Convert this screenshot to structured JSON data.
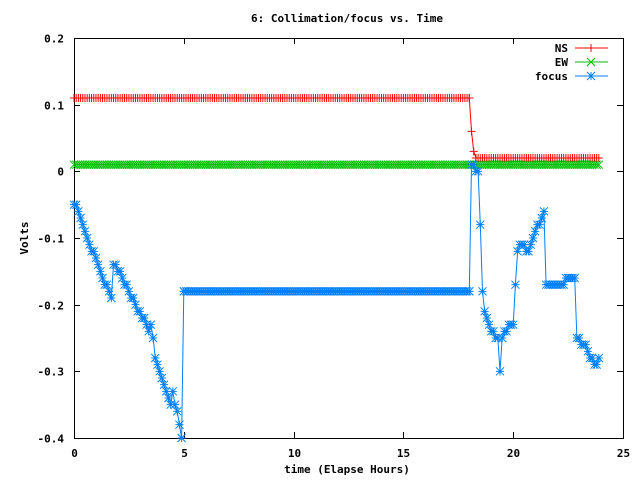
{
  "chart_data": {
    "type": "line",
    "title": "6: Collimation/focus vs. Time",
    "xlabel": "time (Elapse Hours)",
    "ylabel": "Volts",
    "xlim": [
      0,
      25
    ],
    "ylim": [
      -0.4,
      0.2
    ],
    "x_ticks": [
      0,
      5,
      10,
      15,
      20,
      25
    ],
    "x_tick_labels": [
      "0",
      "5",
      "10",
      "15",
      "20",
      "25"
    ],
    "y_ticks": [
      -0.4,
      -0.3,
      -0.2,
      -0.1,
      0,
      0.1,
      0.2
    ],
    "y_tick_labels": [
      "-0.4",
      "-0.3",
      "-0.2",
      "-0.1",
      "0",
      "0.1",
      "0.2"
    ],
    "grid": false,
    "legend_position": "top-right",
    "series": [
      {
        "name": "NS",
        "color": "#ff0000",
        "marker": "plus",
        "segments": [
          {
            "x_start": 0.0,
            "x_end": 18.0,
            "step": 0.1,
            "y": 0.11
          },
          {
            "x_start": 18.3,
            "x_end": 23.9,
            "step": 0.1,
            "y": 0.02
          }
        ],
        "points": [
          [
            18.0,
            0.11
          ],
          [
            18.1,
            0.06
          ],
          [
            18.2,
            0.03
          ],
          [
            18.3,
            0.02
          ]
        ]
      },
      {
        "name": "EW",
        "color": "#00c000",
        "marker": "cross",
        "segments": [
          {
            "x_start": 0.0,
            "x_end": 23.9,
            "step": 0.1,
            "y": 0.01
          }
        ],
        "points": []
      },
      {
        "name": "focus",
        "color": "#0080ff",
        "marker": "star",
        "segments": [
          {
            "x_start": 5.0,
            "x_end": 18.0,
            "step": 0.1,
            "y": -0.18
          }
        ],
        "points": [
          [
            0.0,
            -0.05
          ],
          [
            0.1,
            -0.05
          ],
          [
            0.2,
            -0.06
          ],
          [
            0.3,
            -0.07
          ],
          [
            0.4,
            -0.08
          ],
          [
            0.5,
            -0.09
          ],
          [
            0.6,
            -0.1
          ],
          [
            0.7,
            -0.11
          ],
          [
            0.8,
            -0.12
          ],
          [
            0.9,
            -0.12
          ],
          [
            1.0,
            -0.13
          ],
          [
            1.1,
            -0.14
          ],
          [
            1.2,
            -0.15
          ],
          [
            1.3,
            -0.16
          ],
          [
            1.4,
            -0.17
          ],
          [
            1.5,
            -0.17
          ],
          [
            1.6,
            -0.18
          ],
          [
            1.7,
            -0.19
          ],
          [
            1.8,
            -0.14
          ],
          [
            1.9,
            -0.14
          ],
          [
            2.0,
            -0.15
          ],
          [
            2.1,
            -0.15
          ],
          [
            2.2,
            -0.16
          ],
          [
            2.3,
            -0.17
          ],
          [
            2.4,
            -0.17
          ],
          [
            2.5,
            -0.18
          ],
          [
            2.6,
            -0.19
          ],
          [
            2.7,
            -0.19
          ],
          [
            2.8,
            -0.2
          ],
          [
            2.9,
            -0.21
          ],
          [
            3.0,
            -0.21
          ],
          [
            3.1,
            -0.22
          ],
          [
            3.2,
            -0.22
          ],
          [
            3.3,
            -0.23
          ],
          [
            3.4,
            -0.24
          ],
          [
            3.5,
            -0.23
          ],
          [
            3.6,
            -0.25
          ],
          [
            3.7,
            -0.28
          ],
          [
            3.8,
            -0.29
          ],
          [
            3.9,
            -0.3
          ],
          [
            4.0,
            -0.31
          ],
          [
            4.1,
            -0.32
          ],
          [
            4.2,
            -0.33
          ],
          [
            4.3,
            -0.34
          ],
          [
            4.4,
            -0.35
          ],
          [
            4.5,
            -0.33
          ],
          [
            4.6,
            -0.35
          ],
          [
            4.7,
            -0.36
          ],
          [
            4.8,
            -0.38
          ],
          [
            4.9,
            -0.4
          ],
          [
            5.0,
            -0.18
          ],
          [
            18.0,
            -0.18
          ],
          [
            18.1,
            0.01
          ],
          [
            18.2,
            0.01
          ],
          [
            18.3,
            0.0
          ],
          [
            18.4,
            0.0
          ],
          [
            18.5,
            -0.08
          ],
          [
            18.6,
            -0.18
          ],
          [
            18.7,
            -0.21
          ],
          [
            18.8,
            -0.22
          ],
          [
            18.9,
            -0.23
          ],
          [
            19.0,
            -0.24
          ],
          [
            19.1,
            -0.24
          ],
          [
            19.2,
            -0.25
          ],
          [
            19.3,
            -0.25
          ],
          [
            19.4,
            -0.3
          ],
          [
            19.5,
            -0.25
          ],
          [
            19.6,
            -0.24
          ],
          [
            19.7,
            -0.24
          ],
          [
            19.8,
            -0.23
          ],
          [
            19.9,
            -0.23
          ],
          [
            20.0,
            -0.23
          ],
          [
            20.1,
            -0.17
          ],
          [
            20.2,
            -0.12
          ],
          [
            20.3,
            -0.11
          ],
          [
            20.4,
            -0.11
          ],
          [
            20.5,
            -0.11
          ],
          [
            20.6,
            -0.12
          ],
          [
            20.7,
            -0.12
          ],
          [
            20.8,
            -0.11
          ],
          [
            20.9,
            -0.1
          ],
          [
            21.0,
            -0.09
          ],
          [
            21.1,
            -0.08
          ],
          [
            21.2,
            -0.08
          ],
          [
            21.3,
            -0.07
          ],
          [
            21.4,
            -0.06
          ],
          [
            21.5,
            -0.17
          ],
          [
            21.6,
            -0.17
          ],
          [
            21.7,
            -0.17
          ],
          [
            21.8,
            -0.17
          ],
          [
            21.9,
            -0.17
          ],
          [
            22.0,
            -0.17
          ],
          [
            22.1,
            -0.17
          ],
          [
            22.2,
            -0.17
          ],
          [
            22.3,
            -0.17
          ],
          [
            22.4,
            -0.16
          ],
          [
            22.5,
            -0.16
          ],
          [
            22.6,
            -0.16
          ],
          [
            22.7,
            -0.16
          ],
          [
            22.8,
            -0.16
          ],
          [
            22.9,
            -0.25
          ],
          [
            23.0,
            -0.25
          ],
          [
            23.1,
            -0.26
          ],
          [
            23.2,
            -0.26
          ],
          [
            23.3,
            -0.26
          ],
          [
            23.4,
            -0.27
          ],
          [
            23.5,
            -0.28
          ],
          [
            23.6,
            -0.28
          ],
          [
            23.7,
            -0.29
          ],
          [
            23.8,
            -0.29
          ],
          [
            23.9,
            -0.28
          ]
        ]
      }
    ]
  }
}
